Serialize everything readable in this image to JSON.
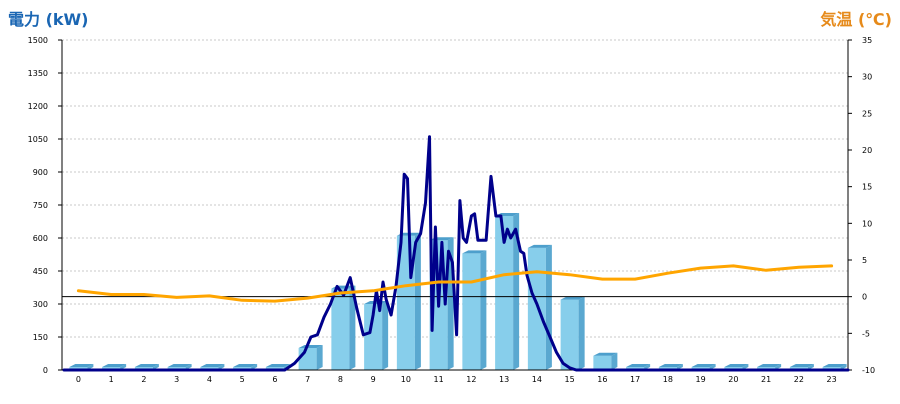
{
  "chart_data": {
    "type": "bar",
    "title_left": "電力 (kW)",
    "title_right": "気温 (℃)",
    "xlabel": "",
    "ylabel": "電力 (kW)",
    "y2label": "気温 (℃)",
    "ylim": [
      0,
      1500
    ],
    "y2lim": [
      -10,
      35
    ],
    "y_ticks": [
      0,
      150,
      300,
      450,
      600,
      750,
      900,
      1050,
      1200,
      1350,
      1500
    ],
    "y2_ticks": [
      -10,
      -5,
      0,
      5,
      10,
      15,
      20,
      25,
      30,
      35
    ],
    "categories": [
      "0",
      "1",
      "2",
      "3",
      "4",
      "5",
      "6",
      "7",
      "8",
      "9",
      "10",
      "11",
      "12",
      "13",
      "14",
      "15",
      "16",
      "17",
      "18",
      "19",
      "20",
      "21",
      "22",
      "23"
    ],
    "grid": true,
    "legend": "none",
    "series": [
      {
        "kind": "bar",
        "axis": "left",
        "values": [
          0,
          0,
          0,
          0,
          0,
          0,
          0,
          100,
          370,
          300,
          610,
          590,
          530,
          700,
          555,
          320,
          65,
          0,
          0,
          0,
          0,
          0,
          0,
          0
        ]
      },
      {
        "kind": "line",
        "axis": "left",
        "x": [
          6.3,
          6.6,
          6.9,
          7.1,
          7.3,
          7.5,
          7.7,
          7.9,
          8.1,
          8.3,
          8.5,
          8.7,
          8.9,
          9.0,
          9.1,
          9.2,
          9.3,
          9.4,
          9.55,
          9.7,
          9.85,
          9.95,
          10.05,
          10.15,
          10.3,
          10.45,
          10.6,
          10.72,
          10.8,
          10.9,
          11.0,
          11.1,
          11.2,
          11.3,
          11.42,
          11.55,
          11.65,
          11.75,
          11.85,
          12.0,
          12.1,
          12.2,
          12.3,
          12.45,
          12.6,
          12.75,
          12.9,
          13.0,
          13.1,
          13.2,
          13.35,
          13.5,
          13.6,
          13.7,
          13.85,
          14.0,
          14.2,
          14.4,
          14.6,
          14.8,
          15.0,
          15.2,
          15.4,
          15.6,
          15.8,
          16.0,
          16.3
        ],
        "values": [
          0,
          30,
          80,
          150,
          160,
          240,
          300,
          380,
          340,
          420,
          280,
          160,
          170,
          250,
          360,
          270,
          400,
          320,
          250,
          380,
          580,
          890,
          870,
          420,
          580,
          620,
          760,
          1060,
          180,
          650,
          290,
          580,
          300,
          540,
          490,
          160,
          770,
          600,
          580,
          700,
          710,
          590,
          590,
          590,
          880,
          700,
          700,
          580,
          640,
          600,
          640,
          540,
          530,
          430,
          350,
          300,
          220,
          150,
          80,
          30,
          10,
          0,
          0,
          0,
          0,
          0,
          0
        ]
      },
      {
        "kind": "line",
        "axis": "right",
        "x": [
          0,
          1,
          2,
          3,
          4,
          5,
          6,
          7,
          8,
          9,
          10,
          11,
          12,
          13,
          14,
          15,
          16,
          17,
          18,
          19,
          20,
          21,
          22,
          23
        ],
        "values": [
          0.8,
          0.3,
          0.3,
          -0.1,
          0.1,
          -0.5,
          -0.6,
          -0.2,
          0.5,
          0.8,
          1.5,
          2.0,
          2.0,
          3.0,
          3.4,
          3.0,
          2.4,
          2.4,
          3.2,
          3.9,
          4.2,
          3.6,
          4.0,
          4.2
        ]
      }
    ],
    "colors": {
      "bar": "#87ceeb",
      "bar_side": "#5aa8d0",
      "bar_top": "#4d9fcc",
      "power_line": "#00008b",
      "temp_line": "#ffa500",
      "title_left": "#1a66b3",
      "title_right": "#e68a1a",
      "grid": "#c8c8c8",
      "axis": "#000000",
      "zero_line": "#000000"
    }
  }
}
